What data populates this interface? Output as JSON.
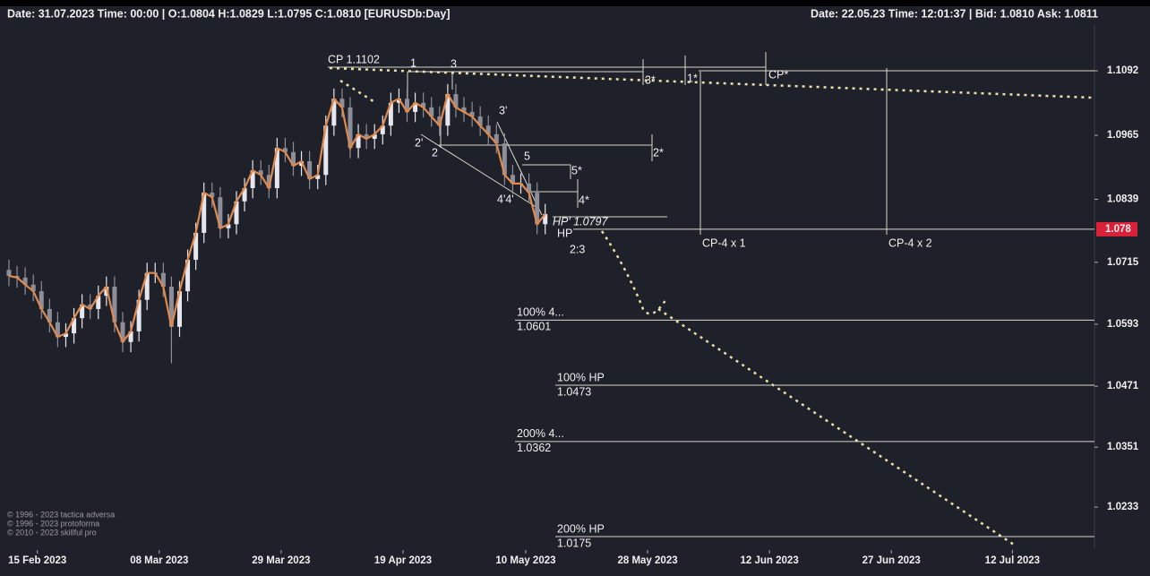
{
  "chart_data": {
    "type": "candlestick",
    "header_left": "Date: 31.07.2023 Time: 00:00 | O:1.0804 H:1.0829 L:1.0795 C:1.0810  [EURUSDb:Day]",
    "header_right": "Date: 22.05.23 Time: 12:01:37 | Bid: 1.0810 Ask: 1.0811",
    "open": [
      1.07,
      1.0688,
      1.0685,
      1.0671,
      1.0658,
      1.0623,
      1.0597,
      1.0568,
      1.0575,
      1.0605,
      1.0632,
      1.0623,
      1.0649,
      1.0667,
      1.0597,
      1.0558,
      1.0579,
      1.0641,
      1.0694,
      1.0694,
      1.0667,
      1.0588,
      1.0658,
      1.072,
      1.0773,
      1.0852,
      1.0843,
      1.0782,
      1.079,
      1.0835,
      1.0861,
      1.0896,
      1.0887,
      1.0861,
      1.094,
      1.0932,
      1.0905,
      1.0914,
      1.0879,
      1.0887,
      1.0984,
      1.1037,
      1.102,
      1.094,
      1.0967,
      1.0958,
      1.0967,
      1.0984,
      1.1029,
      1.1037,
      1.1011,
      1.1029,
      1.102,
      1.1002,
      1.0984,
      1.1046,
      1.102,
      1.1011,
      1.1002,
      1.0984,
      1.0967,
      1.0949,
      1.0887,
      1.087,
      1.087,
      1.0852,
      1.079
    ],
    "high": [
      1.072,
      1.0708,
      1.0705,
      1.0691,
      1.0678,
      1.0643,
      1.0617,
      1.0595,
      1.0625,
      1.0652,
      1.0652,
      1.0669,
      1.0687,
      1.0687,
      1.0617,
      1.0599,
      1.0661,
      1.0714,
      1.0714,
      1.0714,
      1.0687,
      1.0678,
      1.074,
      1.0793,
      1.0872,
      1.0872,
      1.0863,
      1.081,
      1.0855,
      1.0881,
      1.0916,
      1.0916,
      1.0907,
      1.096,
      1.096,
      1.0952,
      1.0934,
      1.0934,
      1.0907,
      1.1004,
      1.1057,
      1.1057,
      1.104,
      1.0987,
      1.0987,
      1.0987,
      1.1004,
      1.1049,
      1.1057,
      1.1057,
      1.1049,
      1.1049,
      1.104,
      1.1022,
      1.1066,
      1.1066,
      1.104,
      1.1031,
      1.1022,
      1.1004,
      1.0987,
      1.0969,
      1.0907,
      1.089,
      1.089,
      1.0872,
      1.083
    ],
    "low": [
      1.0668,
      1.0665,
      1.0651,
      1.0638,
      1.0603,
      1.0577,
      1.0548,
      1.0548,
      1.0555,
      1.0585,
      1.0603,
      1.0603,
      1.0629,
      1.0577,
      1.0538,
      1.0538,
      1.0559,
      1.0621,
      1.0674,
      1.0647,
      1.0516,
      1.0568,
      1.0638,
      1.07,
      1.0753,
      1.0823,
      1.0762,
      1.0762,
      1.077,
      1.0815,
      1.0841,
      1.0867,
      1.0841,
      1.0841,
      1.0912,
      1.0885,
      1.0885,
      1.0859,
      1.0859,
      1.0867,
      1.0964,
      1.1,
      1.092,
      1.092,
      1.0938,
      1.0938,
      1.0947,
      1.0964,
      1.1009,
      1.0991,
      1.0991,
      1.1,
      1.0982,
      1.0964,
      1.0964,
      1.1,
      1.0991,
      1.0982,
      1.0964,
      1.0947,
      1.0929,
      1.0867,
      1.085,
      1.085,
      1.0832,
      1.077,
      1.077
    ],
    "close": [
      1.0688,
      1.0685,
      1.0671,
      1.0658,
      1.0623,
      1.0597,
      1.0568,
      1.0575,
      1.0605,
      1.0632,
      1.0623,
      1.0649,
      1.0667,
      1.0597,
      1.0558,
      1.0579,
      1.0641,
      1.0694,
      1.0694,
      1.0667,
      1.0588,
      1.0658,
      1.072,
      1.0773,
      1.0852,
      1.0843,
      1.0782,
      1.079,
      1.0835,
      1.0861,
      1.0896,
      1.0887,
      1.0861,
      1.094,
      1.0932,
      1.0905,
      1.0914,
      1.0879,
      1.0887,
      1.0984,
      1.1037,
      1.102,
      1.094,
      1.0967,
      1.0958,
      1.0967,
      1.0984,
      1.1029,
      1.1037,
      1.1011,
      1.1029,
      1.102,
      1.1002,
      1.0984,
      1.1046,
      1.102,
      1.1011,
      1.1002,
      1.0984,
      1.0967,
      1.0949,
      1.0887,
      1.087,
      1.087,
      1.0852,
      1.079,
      1.081
    ],
    "up_color": "#e6e6ee",
    "down_color": "#8e8e9a",
    "line_color": "#e08a4e",
    "xlim": [
      -1.1,
      133.6
    ],
    "xticks": [
      {
        "value": 3.5,
        "label": "15 Feb 2023"
      },
      {
        "value": 18.5,
        "label": "08 Mar 2023"
      },
      {
        "value": 33.5,
        "label": "29 Mar 2023"
      },
      {
        "value": 48.5,
        "label": "19 Apr 2023"
      },
      {
        "value": 63.6,
        "label": "10 May 2023"
      },
      {
        "value": 78.6,
        "label": "28 May 2023"
      },
      {
        "value": 93.6,
        "label": "12 Jun 2023"
      },
      {
        "value": 108.6,
        "label": "27 Jun 2023"
      },
      {
        "value": 123.5,
        "label": "12 Jul 2023"
      }
    ],
    "ylim": [
      1.0152,
      1.1182
    ],
    "yticks": [
      1.1092,
      1.0965,
      1.0839,
      1.0715,
      1.0593,
      1.0471,
      1.0351,
      1.0233
    ],
    "current_price": 1.078,
    "current_color": "#d9213a",
    "levels": [
      {
        "name": "100%  4...",
        "value": 1.0601
      },
      {
        "name": "100% HP",
        "value": 1.0473
      },
      {
        "name": "200%  4...",
        "value": 1.0362
      },
      {
        "name": "200% HP",
        "value": 1.0175
      }
    ],
    "annotations": [
      "CP  1.1102",
      "1",
      "3",
      "3*",
      "1*",
      "CP*",
      "3'",
      "2'",
      "2",
      "2*",
      "5",
      "5*",
      "4*",
      "4'4'",
      "HP' 1.0797",
      "HP",
      "2:3",
      "CP-4 x 1",
      "CP-4 x 2"
    ],
    "copyright": [
      "© 1996 - 2023 tactica adversa",
      "© 1996 - 2023 protoforma",
      "© 2010 - 2023 skillful pro"
    ]
  }
}
